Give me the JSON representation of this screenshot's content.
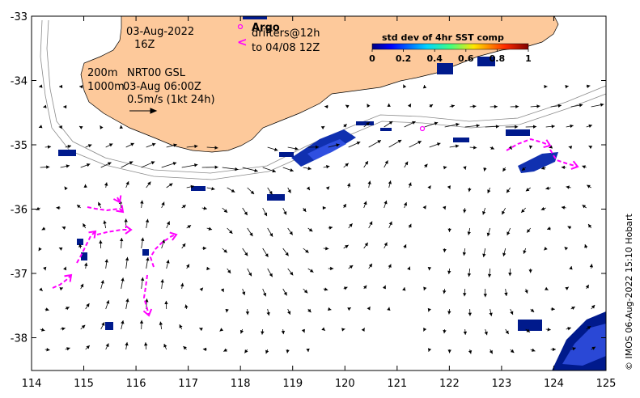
{
  "map": {
    "title_date": "03-Aug-2022",
    "title_time": "16Z",
    "depth_label_1": "200m",
    "depth_label_2": "1000m",
    "product_label": "NRT00 GSL",
    "product_time": "03-Aug 06:00Z",
    "scale_label": "0.5m/s (1kt 24h)",
    "argo_label": "Argo",
    "drifters_label": "drifters@12h",
    "drifters_until": "to 04/08 12Z",
    "colorbar_title": "std dev of 4hr SST comp",
    "colorbar_ticks": [
      "0",
      "0.2",
      "0.4",
      "0.6",
      "0.8",
      "1"
    ],
    "side_credit": "© IMOS 06-Aug-2022 15:10 Hobart",
    "x_ticks": [
      "114",
      "115",
      "116",
      "117",
      "118",
      "119",
      "120",
      "121",
      "122",
      "123",
      "124",
      "125"
    ],
    "y_ticks": [
      "-33",
      "-34",
      "-35",
      "-36",
      "-37",
      "-38"
    ],
    "colors": {
      "land": "#fdc99b",
      "drifter": "#ff00ff",
      "sst_dark": "#001a8c",
      "sst_mid": "#1e3cd2"
    }
  }
}
